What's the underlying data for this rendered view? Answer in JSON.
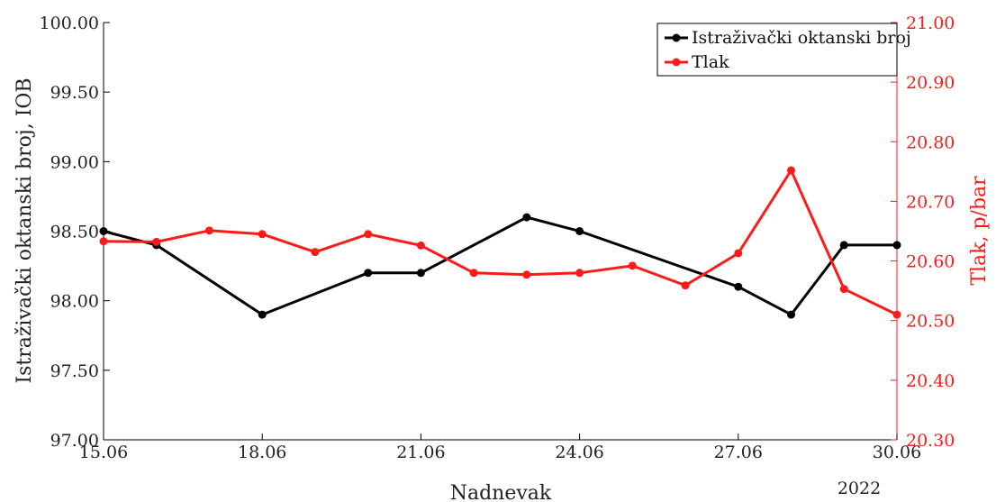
{
  "chart_data": {
    "type": "line",
    "xlabel": "Nadnevak",
    "x_year_label": "2022",
    "x": [
      "15.06",
      "16.06",
      "17.06",
      "18.06",
      "19.06",
      "20.06",
      "21.06",
      "22.06",
      "23.06",
      "24.06",
      "25.06",
      "26.06",
      "27.06",
      "28.06",
      "29.06",
      "30.06"
    ],
    "x_tick_labels": [
      "15.06",
      "18.06",
      "21.06",
      "24.06",
      "27.06",
      "30.06"
    ],
    "xlim": [
      "15.06",
      "30.06"
    ],
    "y_left": {
      "label": "Istraživački oktanski broj, IOB",
      "lim": [
        97.0,
        100.0
      ],
      "ticks": [
        "97.00",
        "97.50",
        "98.00",
        "98.50",
        "99.00",
        "99.50",
        "100.00"
      ],
      "color": "#000000"
    },
    "y_right": {
      "label": "Tlak, p/bar",
      "lim": [
        20.3,
        21.0
      ],
      "ticks": [
        "20.30",
        "20.40",
        "20.50",
        "20.60",
        "20.70",
        "20.80",
        "20.90",
        "21.00"
      ],
      "color": "#ff1a1a"
    },
    "series": [
      {
        "name": "Istraživački oktanski broj",
        "axis": "left",
        "color": "#000000",
        "points": [
          {
            "x": "15.06",
            "y": 98.5
          },
          {
            "x": "16.06",
            "y": 98.4
          },
          {
            "x": "18.06",
            "y": 97.9
          },
          {
            "x": "20.06",
            "y": 98.2
          },
          {
            "x": "21.06",
            "y": 98.2
          },
          {
            "x": "23.06",
            "y": 98.6
          },
          {
            "x": "24.06",
            "y": 98.5
          },
          {
            "x": "27.06",
            "y": 98.1
          },
          {
            "x": "28.06",
            "y": 97.9
          },
          {
            "x": "29.06",
            "y": 98.4
          },
          {
            "x": "30.06",
            "y": 98.4
          }
        ]
      },
      {
        "name": "Tlak",
        "axis": "right",
        "color": "#ff1a1a",
        "points": [
          {
            "x": "15.06",
            "y": 20.633
          },
          {
            "x": "16.06",
            "y": 20.632
          },
          {
            "x": "17.06",
            "y": 20.651
          },
          {
            "x": "18.06",
            "y": 20.645
          },
          {
            "x": "19.06",
            "y": 20.615
          },
          {
            "x": "20.06",
            "y": 20.645
          },
          {
            "x": "21.06",
            "y": 20.626
          },
          {
            "x": "22.06",
            "y": 20.58
          },
          {
            "x": "23.06",
            "y": 20.577
          },
          {
            "x": "24.06",
            "y": 20.58
          },
          {
            "x": "25.06",
            "y": 20.592
          },
          {
            "x": "26.06",
            "y": 20.559
          },
          {
            "x": "27.06",
            "y": 20.613
          },
          {
            "x": "28.06",
            "y": 20.752
          },
          {
            "x": "29.06",
            "y": 20.553
          },
          {
            "x": "30.06",
            "y": 20.51
          }
        ]
      }
    ],
    "legend": {
      "placement": "top-right",
      "entries": [
        "Istraživački oktanski broj",
        "Tlak"
      ]
    },
    "grid": false
  }
}
